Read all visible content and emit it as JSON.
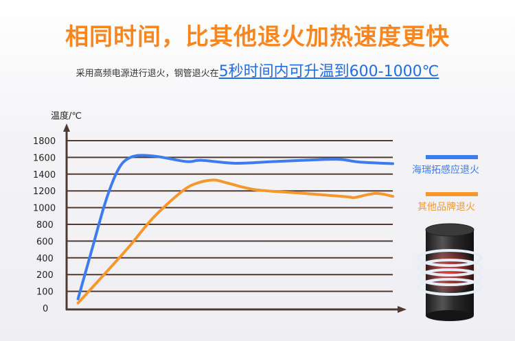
{
  "title": "相同时间，比其他退火加热速度更快",
  "subtitle": {
    "prefix": "采用高频电源进行退火，钢管退火在",
    "highlight": "5秒时间内可升温到600-1000℃"
  },
  "colors": {
    "title": "#f7861f",
    "highlight": "#1e6ee8",
    "axis": "#4e3a30"
  },
  "chart_data": {
    "type": "line",
    "title": "",
    "ylabel": "温度/℃",
    "xlabel": "",
    "y_ticks": [
      0,
      100,
      200,
      400,
      600,
      800,
      1000,
      1200,
      1400,
      1600,
      1800
    ],
    "ylim": [
      0,
      1800
    ],
    "grid": true,
    "legend_position": "right",
    "series": [
      {
        "name": "海瑞拓感应退火",
        "color": "#3d7cf0",
        "points": [
          [
            3.3,
            55
          ],
          [
            7.5,
            490
          ],
          [
            11.3,
            1015
          ],
          [
            14.2,
            1335
          ],
          [
            16.7,
            1520
          ],
          [
            19.4,
            1600
          ],
          [
            22.5,
            1625
          ],
          [
            27.8,
            1610
          ],
          [
            36.7,
            1550
          ],
          [
            41.1,
            1565
          ],
          [
            51.6,
            1530
          ],
          [
            63.5,
            1550
          ],
          [
            78.5,
            1575
          ],
          [
            84.3,
            1575
          ],
          [
            89.6,
            1545
          ],
          [
            100,
            1525
          ]
        ]
      },
      {
        "name": "其他品牌退火",
        "color": "#f5972b",
        "points": [
          [
            3.3,
            30
          ],
          [
            11.3,
            200
          ],
          [
            18.8,
            525
          ],
          [
            26.3,
            875
          ],
          [
            35.1,
            1190
          ],
          [
            39.7,
            1290
          ],
          [
            44.9,
            1330
          ],
          [
            48.6,
            1300
          ],
          [
            57.6,
            1215
          ],
          [
            71,
            1175
          ],
          [
            85.8,
            1130
          ],
          [
            88.1,
            1120
          ],
          [
            94.8,
            1170
          ],
          [
            100,
            1135
          ]
        ]
      }
    ]
  }
}
